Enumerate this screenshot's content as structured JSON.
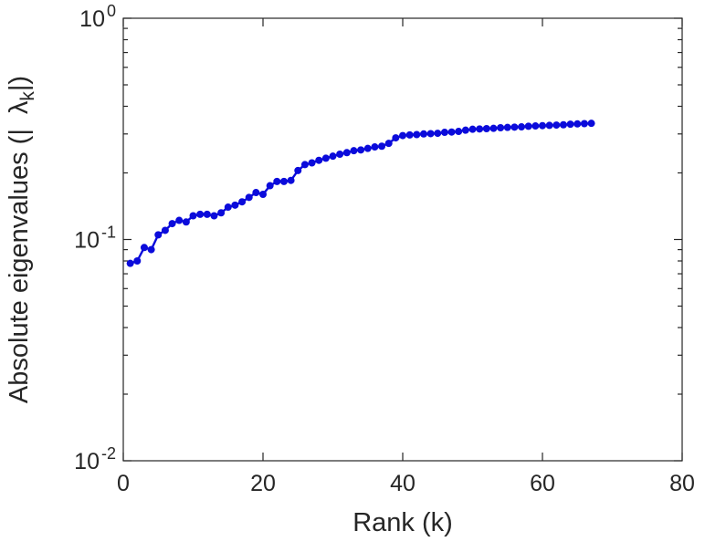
{
  "figure": {
    "background": "#ffffff",
    "axis_color": "#262626",
    "text_color": "#262626"
  },
  "chart_data": {
    "type": "line",
    "title": "",
    "xlabel": "Rank (k)",
    "ylabel_parts": {
      "prefix": "Absolute eigenvalues (|",
      "symbol": "λ",
      "subscript": "k",
      "suffix": "|)"
    },
    "x_scale": "linear",
    "y_scale": "log",
    "xlim": [
      0,
      80
    ],
    "ylim": [
      0.01,
      1
    ],
    "x_ticks": [
      0,
      20,
      40,
      60,
      80
    ],
    "y_tick_exponents": [
      0,
      -1,
      -2
    ],
    "y_tick_base": "10",
    "grid": false,
    "legend": null,
    "series": [
      {
        "name": "absolute-eigenvalues",
        "color": "#0b0bdb",
        "marker": "filled-circle",
        "x": [
          1,
          2,
          3,
          4,
          5,
          6,
          7,
          8,
          9,
          10,
          11,
          12,
          13,
          14,
          15,
          16,
          17,
          18,
          19,
          20,
          21,
          22,
          23,
          24,
          25,
          26,
          27,
          28,
          29,
          30,
          31,
          32,
          33,
          34,
          35,
          36,
          37,
          38,
          39,
          40,
          41,
          42,
          43,
          44,
          45,
          46,
          47,
          48,
          49,
          50,
          51,
          52,
          53,
          54,
          55,
          56,
          57,
          58,
          59,
          60,
          61,
          62,
          63,
          64,
          65,
          66,
          67
        ],
        "y": [
          0.078,
          0.08,
          0.092,
          0.09,
          0.105,
          0.11,
          0.118,
          0.122,
          0.12,
          0.128,
          0.13,
          0.13,
          0.128,
          0.132,
          0.14,
          0.143,
          0.148,
          0.155,
          0.163,
          0.16,
          0.175,
          0.183,
          0.183,
          0.185,
          0.205,
          0.218,
          0.222,
          0.228,
          0.233,
          0.238,
          0.243,
          0.247,
          0.252,
          0.254,
          0.258,
          0.262,
          0.264,
          0.272,
          0.288,
          0.295,
          0.297,
          0.298,
          0.3,
          0.301,
          0.302,
          0.305,
          0.306,
          0.308,
          0.312,
          0.315,
          0.316,
          0.317,
          0.318,
          0.32,
          0.321,
          0.322,
          0.323,
          0.325,
          0.326,
          0.327,
          0.328,
          0.329,
          0.33,
          0.332,
          0.333,
          0.334,
          0.335
        ]
      }
    ]
  }
}
